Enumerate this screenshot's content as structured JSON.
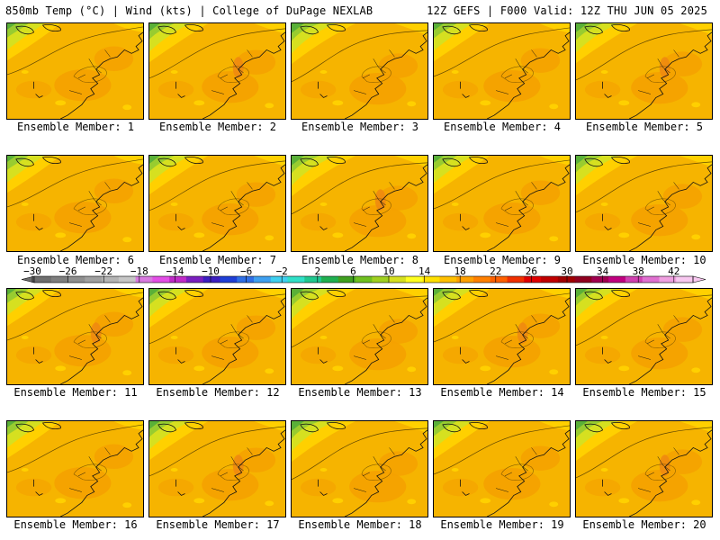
{
  "header": {
    "left": "850mb Temp (°C) | Wind (kts) | College of DuPage NEXLAB",
    "right": "12Z GEFS | F000 Valid: 12Z THU JUN 05 2025"
  },
  "members": [
    {
      "label": "Ensemble Member: 1"
    },
    {
      "label": "Ensemble Member: 2"
    },
    {
      "label": "Ensemble Member: 3"
    },
    {
      "label": "Ensemble Member: 4"
    },
    {
      "label": "Ensemble Member: 5"
    },
    {
      "label": "Ensemble Member: 6"
    },
    {
      "label": "Ensemble Member: 7"
    },
    {
      "label": "Ensemble Member: 8"
    },
    {
      "label": "Ensemble Member: 9"
    },
    {
      "label": "Ensemble Member: 10"
    },
    {
      "label": "Ensemble Member: 11"
    },
    {
      "label": "Ensemble Member: 12"
    },
    {
      "label": "Ensemble Member: 13"
    },
    {
      "label": "Ensemble Member: 14"
    },
    {
      "label": "Ensemble Member: 15"
    },
    {
      "label": "Ensemble Member: 16"
    },
    {
      "label": "Ensemble Member: 17"
    },
    {
      "label": "Ensemble Member: 18"
    },
    {
      "label": "Ensemble Member: 19"
    },
    {
      "label": "Ensemble Member: 20"
    }
  ],
  "colorbar": {
    "ticks": [
      "−30",
      "−26",
      "−22",
      "−18",
      "−14",
      "−10",
      "−6",
      "−2",
      "2",
      "6",
      "10",
      "14",
      "18",
      "22",
      "26",
      "30",
      "34",
      "38",
      "42"
    ],
    "colors": [
      "#6e6e6e",
      "#7f7f7f",
      "#8f8f8f",
      "#a0a0a0",
      "#b4b4b4",
      "#c6c6c6",
      "#d87ae0",
      "#e34fe6",
      "#c02bc8",
      "#7a1fbf",
      "#3d1fc0",
      "#1f3fd6",
      "#2f6fe6",
      "#3fa0f0",
      "#3fd0f0",
      "#30e0c8",
      "#20c890",
      "#20b050",
      "#40a020",
      "#70c020",
      "#a0d020",
      "#d6e020",
      "#ffff20",
      "#ffe000",
      "#ffc000",
      "#ffa000",
      "#ff8000",
      "#ff6000",
      "#f03000",
      "#e00000",
      "#c00000",
      "#a00000",
      "#900020",
      "#a00050",
      "#c00080",
      "#d040b0",
      "#e070d0",
      "#f0a0e0",
      "#f8c8f0"
    ]
  },
  "map_colors": {
    "base": "#f6b400",
    "warm": "#f5a000",
    "warmer": "#f08a10",
    "cool": "#ffd000",
    "cooler": "#d6e020",
    "cold": "#98cc30",
    "coldest": "#5ab038"
  }
}
